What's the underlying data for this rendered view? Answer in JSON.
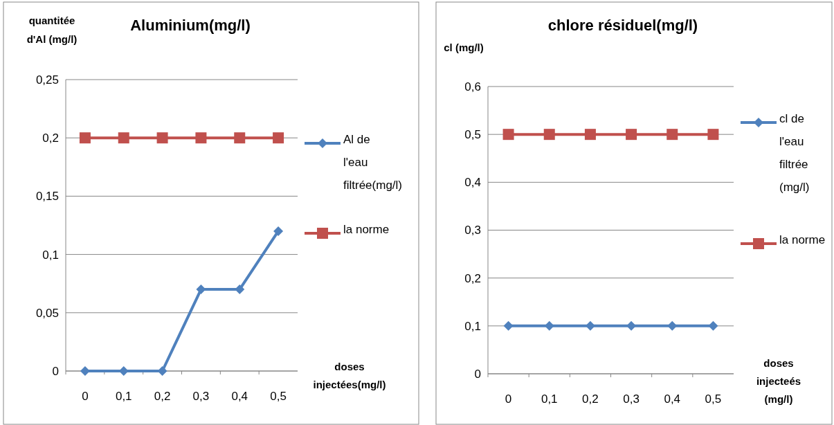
{
  "chart_data": [
    {
      "type": "line",
      "title": "Aluminium(mg/l)",
      "xlabel": "doses injectées(mg/l)",
      "ylabel": "quantitée d'Al (mg/l)",
      "categories": [
        "0",
        "0,1",
        "0,2",
        "0,3",
        "0,4",
        "0,5"
      ],
      "series": [
        {
          "name": "Al de l'eau filtrée(mg/l)",
          "color": "#4f81bd",
          "marker": "diamond",
          "values": [
            0,
            0,
            0,
            0.07,
            0.07,
            0.12
          ]
        },
        {
          "name": "la norme",
          "color": "#c0504d",
          "marker": "square",
          "values": [
            0.2,
            0.2,
            0.2,
            0.2,
            0.2,
            0.2
          ]
        }
      ],
      "ylim": [
        0,
        0.25
      ],
      "yticks": [
        {
          "value": 0,
          "label": "0"
        },
        {
          "value": 0.05,
          "label": "0,05"
        },
        {
          "value": 0.1,
          "label": "0,1"
        },
        {
          "value": 0.15,
          "label": "0,15"
        },
        {
          "value": 0.2,
          "label": "0,2"
        },
        {
          "value": 0.25,
          "label": "0,25"
        }
      ],
      "grid": "y",
      "legend": "right"
    },
    {
      "type": "line",
      "title": "chlore résiduel(mg/l)",
      "xlabel": "doses injecteés (mg/l)",
      "ylabel": "cl (mg/l)",
      "categories": [
        "0",
        "0,1",
        "0,2",
        "0,3",
        "0,4",
        "0,5"
      ],
      "series": [
        {
          "name": "cl de l'eau filtrée (mg/l)",
          "color": "#4f81bd",
          "marker": "diamond",
          "values": [
            0.1,
            0.1,
            0.1,
            0.1,
            0.1,
            0.1
          ]
        },
        {
          "name": "la norme",
          "color": "#c0504d",
          "marker": "square",
          "values": [
            0.5,
            0.5,
            0.5,
            0.5,
            0.5,
            0.5
          ]
        }
      ],
      "ylim": [
        0,
        0.6
      ],
      "yticks": [
        {
          "value": 0,
          "label": "0"
        },
        {
          "value": 0.1,
          "label": "0,1"
        },
        {
          "value": 0.2,
          "label": "0,2"
        },
        {
          "value": 0.3,
          "label": "0,3"
        },
        {
          "value": 0.4,
          "label": "0,4"
        },
        {
          "value": 0.5,
          "label": "0,5"
        },
        {
          "value": 0.6,
          "label": "0,6"
        }
      ],
      "grid": "y",
      "legend": "right"
    }
  ]
}
